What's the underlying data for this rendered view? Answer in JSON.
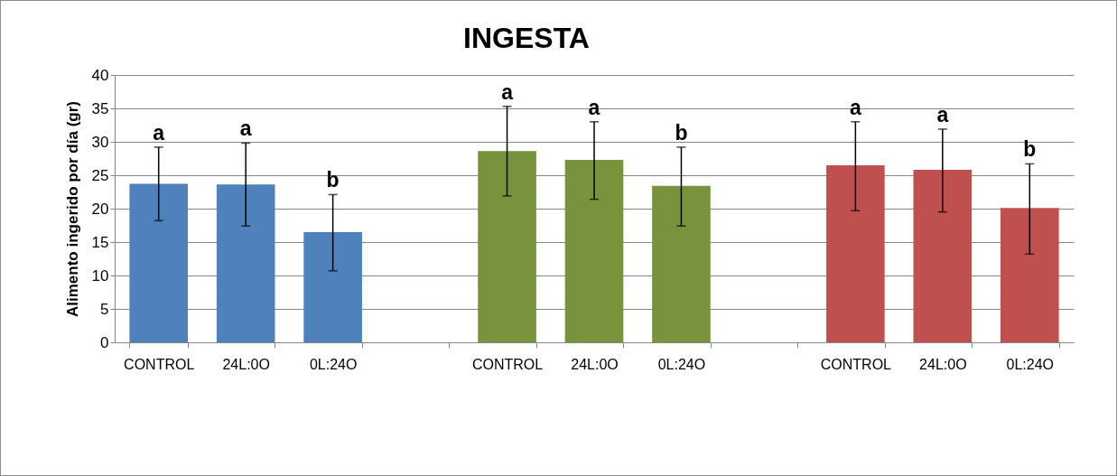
{
  "chart_data": {
    "type": "bar",
    "title": "INGESTA",
    "ylabel": "Alimento ingerido por día (gr)",
    "categories": [
      "CONTROL",
      "24L:0O",
      "0L:24O",
      null,
      "CONTROL",
      "24L:0O",
      "0L:24O",
      null,
      "CONTROL",
      "24L:0O",
      "0L:24O"
    ],
    "values": [
      23.7,
      23.6,
      16.5,
      null,
      28.6,
      27.3,
      23.4,
      null,
      26.5,
      25.8,
      20.1
    ],
    "colors": [
      "#4f81bd",
      "#4f81bd",
      "#4f81bd",
      null,
      "#77933c",
      "#77933c",
      "#77933c",
      null,
      "#c0504d",
      "#c0504d",
      "#c0504d"
    ],
    "errors": [
      [
        18.2,
        29.2
      ],
      [
        17.4,
        29.8
      ],
      [
        10.7,
        22.1
      ],
      null,
      [
        21.9,
        35.3
      ],
      [
        21.4,
        33.0
      ],
      [
        17.4,
        29.2
      ],
      null,
      [
        19.7,
        33.0
      ],
      [
        19.5,
        31.9
      ],
      [
        13.2,
        26.7
      ]
    ],
    "annotations": [
      "a",
      "a",
      "b",
      "a",
      "a",
      "b",
      "a",
      "a",
      "b"
    ],
    "ylim": [
      0,
      40
    ],
    "yticks": [
      0,
      5,
      10,
      15,
      20,
      25,
      30,
      35,
      40
    ],
    "grid": "y"
  }
}
